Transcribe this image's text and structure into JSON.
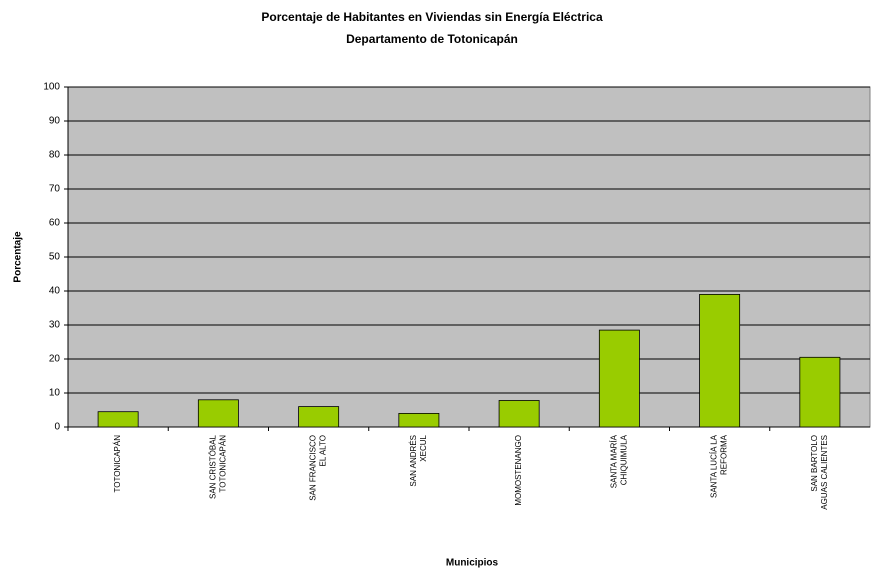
{
  "chart_data": {
    "type": "bar",
    "title": "Porcentaje de Habitantes en Viviendas sin Energía Eléctrica",
    "subtitle": "Departamento de Totonicapán",
    "x_label": "Municipios",
    "y_label": "Porcentaje",
    "categories": [
      "TOTONICAPÁN",
      "SAN CRISTÓBAL\nTOTONICAPÁN",
      "SAN FRANCISCO\nEL ALTO",
      "SAN ANDRÉS\nXECUL",
      "MOMOSTENANGO",
      "SANTA MARÍA\nCHIQUIMULA",
      "SANTA LUCÍA LA\nREFORMA",
      "SAN BARTOLO\nAGUAS CALIENTES"
    ],
    "values": [
      4.5,
      8,
      6,
      4,
      7.8,
      28.5,
      39,
      20.5
    ],
    "color": "#99cc00",
    "ylim": [
      0,
      100
    ],
    "yticks": [
      0,
      10,
      20,
      30,
      40,
      50,
      60,
      70,
      80,
      90,
      100
    ],
    "grid": true
  }
}
